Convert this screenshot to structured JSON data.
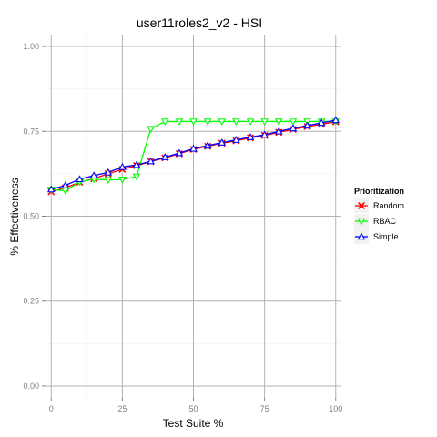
{
  "chart_data": {
    "type": "line",
    "title": "user11roles2_v2 - HSI",
    "xlabel": "Test Suite %",
    "ylabel": "% Effectiveness",
    "xlim": [
      -2,
      102
    ],
    "ylim": [
      -0.035,
      1.035
    ],
    "x_ticks": [
      0,
      25,
      50,
      75,
      100
    ],
    "x_tick_labels": [
      "0",
      "25",
      "50",
      "75",
      "100"
    ],
    "y_ticks": [
      0.0,
      0.25,
      0.5,
      0.75,
      1.0
    ],
    "y_tick_labels": [
      "0.00",
      "0.25",
      "0.50",
      "0.75",
      "1.00"
    ],
    "grid": true,
    "legend": {
      "title": "Prioritization",
      "placement": "right"
    },
    "x": [
      0,
      5,
      10,
      15,
      20,
      25,
      30,
      35,
      40,
      45,
      50,
      55,
      60,
      65,
      70,
      75,
      80,
      85,
      90,
      95,
      100
    ],
    "series": [
      {
        "name": "Random",
        "color": "#ff0000",
        "marker": "x",
        "values": [
          0.572,
          0.584,
          0.6,
          0.611,
          0.625,
          0.638,
          0.649,
          0.661,
          0.672,
          0.684,
          0.697,
          0.706,
          0.715,
          0.722,
          0.731,
          0.738,
          0.747,
          0.756,
          0.764,
          0.771,
          0.778
        ]
      },
      {
        "name": "RBAC",
        "color": "#00ff00",
        "marker": "triangle-down",
        "values": [
          0.578,
          0.575,
          0.601,
          0.609,
          0.607,
          0.608,
          0.617,
          0.757,
          0.779,
          0.779,
          0.779,
          0.779,
          0.779,
          0.779,
          0.779,
          0.779,
          0.779,
          0.779,
          0.779,
          0.779,
          0.779
        ]
      },
      {
        "name": "Simple",
        "color": "#0000ff",
        "marker": "triangle-up",
        "values": [
          0.579,
          0.591,
          0.609,
          0.62,
          0.629,
          0.645,
          0.651,
          0.662,
          0.674,
          0.686,
          0.699,
          0.708,
          0.717,
          0.725,
          0.733,
          0.74,
          0.75,
          0.759,
          0.767,
          0.775,
          0.783
        ]
      }
    ]
  }
}
